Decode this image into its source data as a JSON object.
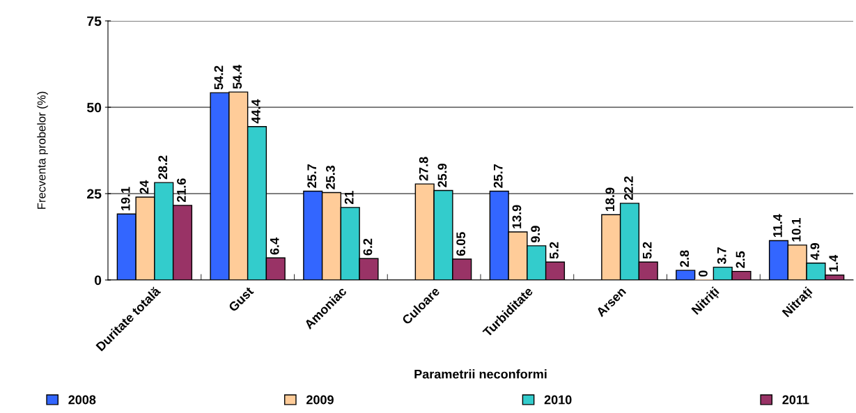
{
  "chart_data": {
    "type": "bar",
    "xlabel": "Parametrii neconformi",
    "ylabel": "Frecventa probelor (%)",
    "categories": [
      "Duritate totală",
      "Gust",
      "Amoniac",
      "Culoare",
      "Turbiditate",
      "Arsen",
      "Nitriți",
      "Nitrați"
    ],
    "series": [
      {
        "name": "2008",
        "color": "#3366ff",
        "values": [
          19.1,
          54.2,
          25.7,
          null,
          25.7,
          null,
          2.8,
          11.4
        ]
      },
      {
        "name": "2009",
        "color": "#ffcc99",
        "values": [
          24,
          54.4,
          25.3,
          27.8,
          13.9,
          18.9,
          0,
          10.1
        ]
      },
      {
        "name": "2010",
        "color": "#33cccc",
        "values": [
          28.2,
          44.4,
          21,
          25.9,
          9.9,
          22.2,
          3.7,
          4.9
        ]
      },
      {
        "name": "2011",
        "color": "#993366",
        "values": [
          21.6,
          6.4,
          6.2,
          6.05,
          5.2,
          5.2,
          2.5,
          1.4
        ]
      }
    ],
    "ylim": [
      0,
      75
    ],
    "yticks": [
      0,
      25,
      50,
      75
    ],
    "grid": "y",
    "legend": "bottom",
    "data_labels": true
  }
}
